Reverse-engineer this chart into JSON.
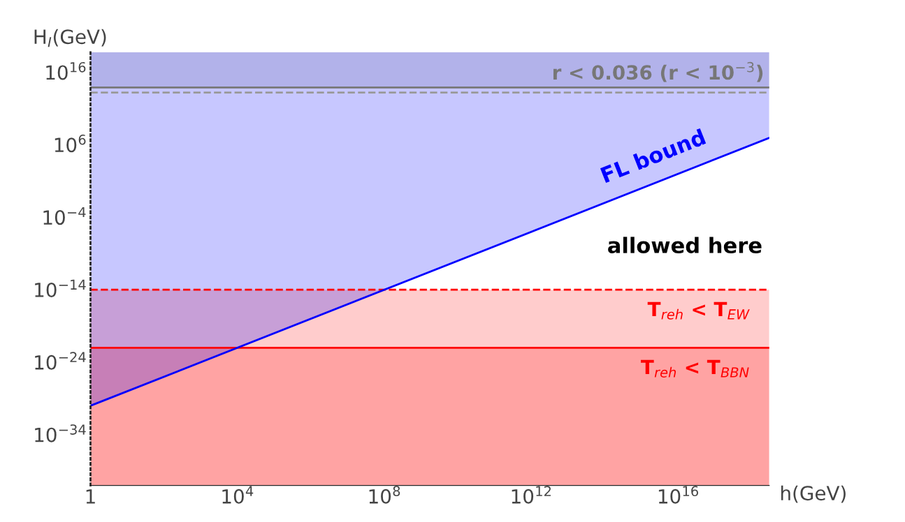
{
  "chart_data": {
    "type": "line",
    "xlabel": "h(GeV)",
    "ylabel": "H$_{I}$(GeV)",
    "log": "xy",
    "grid": false,
    "legend": false,
    "xlim": [
      1,
      3e+18
    ],
    "ylim": [
      1e-41,
      6e+18
    ],
    "xticks": [
      {
        "value": 1,
        "label": "1"
      },
      {
        "value": 10000.0,
        "label": "10$^{4}$"
      },
      {
        "value": 100000000.0,
        "label": "10$^{8}$"
      },
      {
        "value": 1000000000000.0,
        "label": "10$^{12}$"
      },
      {
        "value": 1e+16,
        "label": "10$^{16}$"
      }
    ],
    "yticks": [
      {
        "value": 1e-34,
        "label": "10$^{−34}$"
      },
      {
        "value": 1e-24,
        "label": "10$^{−24}$"
      },
      {
        "value": 1e-14,
        "label": "10$^{−14}$"
      },
      {
        "value": 0.0001,
        "label": "10$^{−4}$"
      },
      {
        "value": 1000000.0,
        "label": "10$^{6}$"
      },
      {
        "value": 1e+16,
        "label": "10$^{16}$"
      }
    ],
    "series": [
      {
        "name": "FL bound",
        "color": "#0000ff",
        "x": [
          1,
          3e+18
        ],
        "values": [
          1e-30,
          9000000.0
        ],
        "lower": [
          1e-30,
          9000000.0
        ],
        "upper": [
          6e+18,
          6e+18
        ]
      }
    ],
    "bands": [
      {
        "axis": "y",
        "from": 1e-41,
        "to": 1e-14,
        "label": "T$_{reh}$ < T$_{EW}$",
        "color": "#ff0000"
      },
      {
        "axis": "y",
        "from": 1e-41,
        "to": 1e-22,
        "label": "T$_{reh}$ < T$_{BBN}$",
        "color": "#ff0000"
      },
      {
        "axis": "y",
        "from": 80000000000000.0,
        "to": 6e+18,
        "color": "#777777"
      }
    ],
    "ref_lines": [
      {
        "axis": "y",
        "value": 1e-14,
        "color": "#ff0000",
        "line_style": "dashed"
      },
      {
        "axis": "y",
        "value": 1e-22,
        "color": "#ff0000",
        "line_style": "solid"
      },
      {
        "axis": "y",
        "value": 80000000000000.0,
        "color": "#777777",
        "line_style": "solid",
        "label": "r < 0.036 (r < 10$^{−3}$)"
      },
      {
        "axis": "y",
        "value": 16000000000000.0,
        "color": "#999999",
        "line_style": "dashed"
      }
    ],
    "annotations": [
      "allowed here"
    ]
  }
}
